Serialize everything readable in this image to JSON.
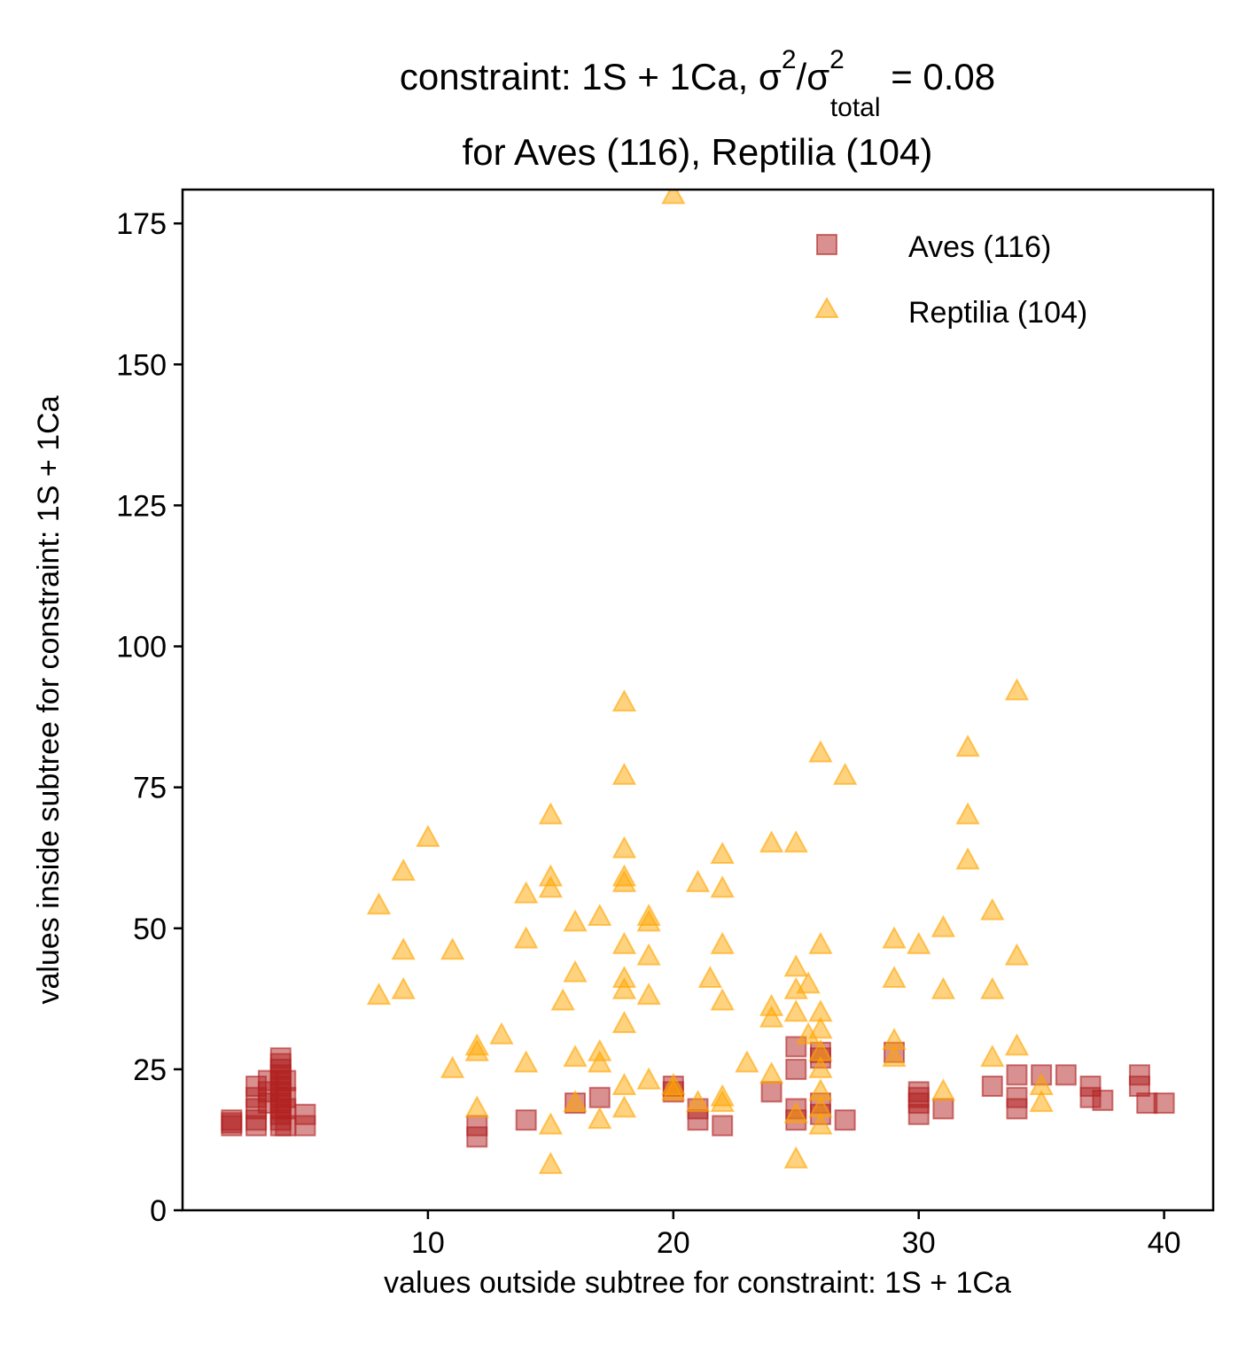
{
  "chart_data": {
    "type": "scatter",
    "title_main": "constraint: 1S + 1Ca, σ",
    "title_sup1": "2",
    "title_mid": "/σ",
    "title_sup2": "2",
    "title_sub": "total",
    "title_tail": " =  0.08",
    "subtitle": "for Aves (116), Reptilia (104)",
    "xlabel": "values outside subtree for constraint: 1S + 1Ca",
    "ylabel": "values inside subtree for constraint: 1S + 1Ca",
    "xlim": [
      0,
      42
    ],
    "ylim": [
      0,
      181
    ],
    "xticks": [
      10,
      20,
      30,
      40
    ],
    "yticks": [
      0,
      25,
      50,
      75,
      100,
      125,
      150,
      175
    ],
    "grid": false,
    "legend_position": "top-right",
    "series": [
      {
        "name": "Aves (116)",
        "marker": "square",
        "color": "#b22222",
        "points": [
          [
            2,
            15
          ],
          [
            2,
            16
          ],
          [
            2,
            15.5
          ],
          [
            3,
            15
          ],
          [
            3,
            16
          ],
          [
            3,
            18
          ],
          [
            3,
            20
          ],
          [
            3,
            22
          ],
          [
            3.5,
            23
          ],
          [
            3.5,
            21
          ],
          [
            3.5,
            19
          ],
          [
            4,
            15
          ],
          [
            4,
            16
          ],
          [
            4,
            17
          ],
          [
            4,
            18
          ],
          [
            4,
            19
          ],
          [
            4,
            20
          ],
          [
            4,
            21
          ],
          [
            4,
            22
          ],
          [
            4,
            23
          ],
          [
            4,
            24
          ],
          [
            4,
            25
          ],
          [
            4,
            26
          ],
          [
            4,
            27
          ],
          [
            4.2,
            15
          ],
          [
            4.2,
            18
          ],
          [
            4.2,
            20
          ],
          [
            4.2,
            23
          ],
          [
            5,
            15
          ],
          [
            5,
            17
          ],
          [
            12,
            13
          ],
          [
            12,
            15
          ],
          [
            14,
            16
          ],
          [
            16,
            19
          ],
          [
            17,
            20
          ],
          [
            20,
            22
          ],
          [
            20,
            21
          ],
          [
            21,
            18
          ],
          [
            21,
            16
          ],
          [
            22,
            15
          ],
          [
            24,
            21
          ],
          [
            25,
            29
          ],
          [
            25,
            25
          ],
          [
            25,
            18
          ],
          [
            25,
            16
          ],
          [
            26,
            19
          ],
          [
            26,
            17
          ],
          [
            26,
            28
          ],
          [
            26,
            27
          ],
          [
            27,
            16
          ],
          [
            29,
            28
          ],
          [
            30,
            21
          ],
          [
            30,
            19
          ],
          [
            30,
            17
          ],
          [
            30,
            20
          ],
          [
            31,
            18
          ],
          [
            33,
            22
          ],
          [
            34,
            24
          ],
          [
            34,
            20
          ],
          [
            34,
            18
          ],
          [
            35,
            24
          ],
          [
            36,
            24
          ],
          [
            37,
            22
          ],
          [
            37,
            20
          ],
          [
            37.5,
            19.5
          ],
          [
            39,
            24
          ],
          [
            39,
            22
          ],
          [
            39.3,
            19
          ],
          [
            40,
            19
          ]
        ]
      },
      {
        "name": "Reptilia (104)",
        "marker": "triangle",
        "color": "#ffa500",
        "points": [
          [
            8,
            54
          ],
          [
            8,
            38
          ],
          [
            9,
            60
          ],
          [
            9,
            46
          ],
          [
            9,
            39
          ],
          [
            10,
            66
          ],
          [
            11,
            46
          ],
          [
            11,
            25
          ],
          [
            12,
            29
          ],
          [
            12,
            28
          ],
          [
            12,
            18
          ],
          [
            13,
            31
          ],
          [
            14,
            56
          ],
          [
            14,
            48
          ],
          [
            14,
            26
          ],
          [
            15,
            70
          ],
          [
            15,
            59
          ],
          [
            15,
            57
          ],
          [
            15,
            15
          ],
          [
            15,
            8
          ],
          [
            15.5,
            37
          ],
          [
            16,
            51
          ],
          [
            16,
            42
          ],
          [
            16,
            27
          ],
          [
            16,
            19
          ],
          [
            17,
            52
          ],
          [
            17,
            28
          ],
          [
            17,
            26
          ],
          [
            17,
            16
          ],
          [
            18,
            90
          ],
          [
            18,
            77
          ],
          [
            18,
            64
          ],
          [
            18,
            59
          ],
          [
            18,
            58
          ],
          [
            18,
            47
          ],
          [
            18,
            41
          ],
          [
            18,
            39
          ],
          [
            18,
            33
          ],
          [
            18,
            22
          ],
          [
            18,
            18
          ],
          [
            19,
            52
          ],
          [
            19,
            51
          ],
          [
            19,
            45
          ],
          [
            19,
            38
          ],
          [
            19,
            23
          ],
          [
            20,
            180
          ],
          [
            20,
            22
          ],
          [
            20,
            21
          ],
          [
            21,
            58
          ],
          [
            21,
            19
          ],
          [
            21.5,
            41
          ],
          [
            22,
            63
          ],
          [
            22,
            57
          ],
          [
            22,
            47
          ],
          [
            22,
            37
          ],
          [
            22,
            20
          ],
          [
            22,
            19
          ],
          [
            23,
            26
          ],
          [
            24,
            65
          ],
          [
            24,
            36
          ],
          [
            24,
            34
          ],
          [
            24,
            24
          ],
          [
            25,
            65
          ],
          [
            25,
            43
          ],
          [
            25,
            39
          ],
          [
            25,
            35
          ],
          [
            25,
            17
          ],
          [
            25,
            9
          ],
          [
            25.5,
            40
          ],
          [
            25.5,
            31
          ],
          [
            26,
            81
          ],
          [
            26,
            47
          ],
          [
            26,
            35
          ],
          [
            26,
            32
          ],
          [
            26,
            28
          ],
          [
            26,
            25
          ],
          [
            26,
            21
          ],
          [
            26,
            18
          ],
          [
            26,
            15
          ],
          [
            27,
            77
          ],
          [
            29,
            48
          ],
          [
            29,
            41
          ],
          [
            29,
            30
          ],
          [
            29,
            27
          ],
          [
            30,
            47
          ],
          [
            31,
            50
          ],
          [
            31,
            39
          ],
          [
            31,
            21
          ],
          [
            32,
            82
          ],
          [
            32,
            70
          ],
          [
            32,
            62
          ],
          [
            33,
            53
          ],
          [
            33,
            39
          ],
          [
            33,
            27
          ],
          [
            34,
            92
          ],
          [
            34,
            45
          ],
          [
            34,
            29
          ],
          [
            35,
            22
          ],
          [
            35,
            19
          ]
        ]
      }
    ]
  }
}
